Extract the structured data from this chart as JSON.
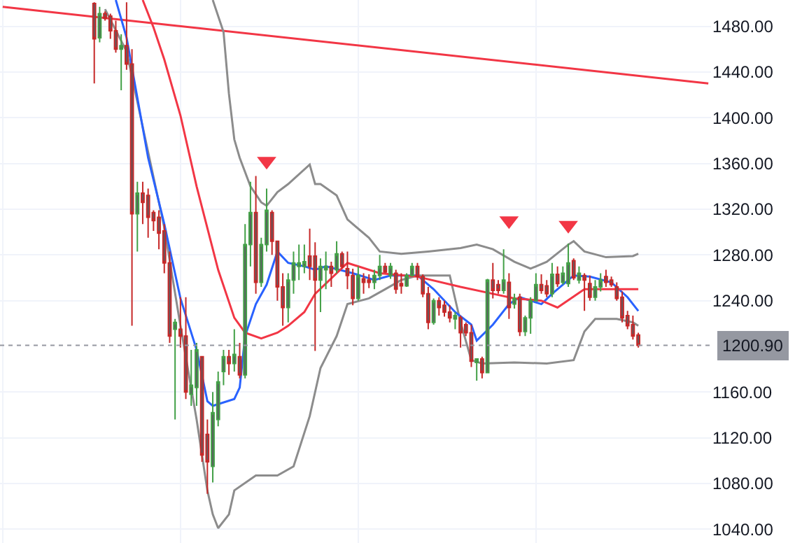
{
  "chart_data": {
    "type": "candlestick",
    "categories": [
      null,
      null,
      null,
      null,
      null,
      null,
      null,
      null,
      null,
      null,
      null,
      null,
      null,
      null,
      null,
      null,
      null,
      null,
      null,
      null,
      null,
      null,
      null,
      null,
      null,
      null,
      null,
      null,
      null,
      null,
      null,
      null,
      null,
      null,
      null,
      null,
      null,
      null,
      null,
      null,
      null,
      null,
      null,
      null,
      null,
      null,
      null,
      null,
      null,
      null,
      null,
      null,
      null,
      null,
      null,
      null,
      null,
      null,
      null,
      null,
      null,
      null,
      null,
      null,
      null,
      null,
      null,
      null,
      null,
      null,
      null,
      null,
      null,
      null,
      null,
      null,
      null,
      null,
      null,
      null,
      null,
      null,
      null,
      null,
      null,
      null,
      null,
      null,
      null,
      null,
      null,
      null,
      null,
      null,
      null,
      null,
      null,
      null,
      null,
      null,
      null,
      null,
      null,
      null,
      null,
      null,
      null,
      null,
      null,
      null,
      null,
      null,
      null,
      null,
      null,
      null,
      null,
      null,
      null,
      null,
      null,
      null,
      null,
      null,
      null,
      null,
      null,
      null,
      null,
      null,
      null,
      null
    ],
    "ohlc": [
      null,
      null,
      null,
      null,
      null,
      null,
      null,
      null,
      null,
      null,
      null,
      null,
      null,
      null,
      null,
      null,
      null,
      [
        1500,
        1501,
        1430,
        1469
      ],
      [
        1470,
        1497,
        1466,
        1491
      ],
      [
        1491,
        1493,
        1485,
        1487
      ],
      [
        1489,
        1491,
        1469,
        1476
      ],
      [
        1476,
        1485,
        1457,
        1460
      ],
      [
        1460,
        1473,
        1424,
        1463
      ],
      [
        1463,
        1501,
        1442,
        1447
      ],
      [
        1447,
        1460,
        1218,
        1316
      ],
      [
        1316,
        1344,
        1283,
        1334
      ],
      [
        1334,
        1344,
        1307,
        1326
      ],
      [
        1332,
        1338,
        1295,
        1313
      ],
      [
        1317,
        1319,
        1301,
        1310
      ],
      [
        1313,
        1319,
        1285,
        1299
      ],
      [
        1301,
        1307,
        1264,
        1273
      ],
      [
        1273,
        1283,
        1203,
        1209
      ],
      [
        1215,
        1224,
        1136,
        1221
      ],
      [
        1215,
        1243,
        1199,
        1209
      ],
      [
        1209,
        1243,
        1154,
        1160
      ],
      [
        1158,
        1197,
        1148,
        1166
      ],
      [
        1164,
        1203,
        1148,
        1197
      ],
      [
        1191,
        1191,
        1099,
        1105
      ],
      [
        1123,
        1136,
        1071,
        1099
      ],
      [
        1095,
        1160,
        1081,
        1142
      ],
      [
        1136,
        1178,
        1130,
        1169
      ],
      [
        1178,
        1197,
        1166,
        1191
      ],
      [
        1191,
        1197,
        1175,
        1185
      ],
      [
        1185,
        1215,
        1178,
        1193
      ],
      [
        1191,
        1203,
        1172,
        1175
      ],
      [
        1175,
        1307,
        1172,
        1289
      ],
      [
        1289,
        1344,
        1270,
        1317
      ],
      [
        1317,
        1349,
        1246,
        1256
      ],
      [
        1256,
        1295,
        1252,
        1289
      ],
      [
        1289,
        1338,
        1283,
        1319
      ],
      [
        1317,
        1319,
        1280,
        1292
      ],
      [
        1292,
        1292,
        1240,
        1252
      ],
      [
        1252,
        1264,
        1218,
        1234
      ],
      [
        1234,
        1264,
        1221,
        1258
      ],
      [
        1258,
        1283,
        1246,
        1273
      ],
      [
        1270,
        1289,
        1258,
        1273
      ],
      [
        1270,
        1289,
        1264,
        1274
      ],
      [
        1279,
        1303,
        1258,
        1270
      ],
      [
        1279,
        1291,
        1196,
        1258
      ],
      [
        1258,
        1277,
        1230,
        1270
      ],
      [
        1267,
        1283,
        1250,
        1270
      ],
      [
        1270,
        1274,
        1252,
        1264
      ],
      [
        1267,
        1292,
        1264,
        1281
      ],
      [
        1281,
        1283,
        1268,
        1270
      ],
      [
        1268,
        1283,
        1250,
        1262
      ],
      [
        1262,
        1268,
        1236,
        1242
      ],
      [
        1242,
        1270,
        1240,
        1262
      ],
      [
        1259,
        1264,
        1246,
        1256
      ],
      [
        1258,
        1263,
        1251,
        1256
      ],
      [
        1256,
        1267,
        1250,
        1262
      ],
      [
        1262,
        1280,
        1258,
        1270
      ],
      [
        1270,
        1273,
        1264,
        1265
      ],
      [
        1262,
        1273,
        1259,
        1270
      ],
      [
        1264,
        1267,
        1246,
        1250
      ],
      [
        1255,
        1264,
        1246,
        1253
      ],
      [
        1253,
        1264,
        1252,
        1262
      ],
      [
        1262,
        1273,
        1261,
        1270
      ],
      [
        1270,
        1273,
        1258,
        1261
      ],
      [
        1261,
        1263,
        1243,
        1246
      ],
      [
        1246,
        1252,
        1215,
        1221
      ],
      [
        1221,
        1242,
        1219,
        1240
      ],
      [
        1240,
        1243,
        1227,
        1234
      ],
      [
        1236,
        1240,
        1226,
        1230
      ],
      [
        1230,
        1236,
        1221,
        1225
      ],
      [
        1224,
        1230,
        1215,
        1227
      ],
      [
        1225,
        1227,
        1199,
        1212
      ],
      [
        1219,
        1221,
        1209,
        1212
      ],
      [
        1212,
        1219,
        1182,
        1187
      ],
      [
        1186,
        1189,
        1170,
        1189
      ],
      [
        1189,
        1191,
        1172,
        1177
      ],
      [
        1177,
        1259,
        1177,
        1258
      ],
      [
        1258,
        1273,
        1242,
        1249
      ],
      [
        1254,
        1258,
        1246,
        1249
      ],
      [
        1249,
        1285,
        1246,
        1258
      ],
      [
        1256,
        1264,
        1224,
        1234
      ],
      [
        1237,
        1246,
        1233,
        1242
      ],
      [
        1243,
        1246,
        1209,
        1213
      ],
      [
        1213,
        1227,
        1209,
        1225
      ],
      [
        1225,
        1243,
        1211,
        1240
      ],
      [
        1240,
        1264,
        1240,
        1254
      ],
      [
        1254,
        1263,
        1246,
        1249
      ],
      [
        1253,
        1258,
        1243,
        1246
      ],
      [
        1246,
        1273,
        1243,
        1263
      ],
      [
        1263,
        1270,
        1252,
        1255
      ],
      [
        1256,
        1270,
        1254,
        1264
      ],
      [
        1255,
        1290,
        1252,
        1273
      ],
      [
        1275,
        1277,
        1258,
        1260
      ],
      [
        1258,
        1270,
        1255,
        1264
      ],
      [
        1262,
        1264,
        1231,
        1258
      ],
      [
        1255,
        1262,
        1240,
        1243
      ],
      [
        1243,
        1258,
        1240,
        1252
      ],
      [
        1252,
        1264,
        1248,
        1258
      ],
      [
        1261,
        1267,
        1252,
        1256
      ],
      [
        1258,
        1261,
        1252,
        1254
      ],
      [
        1252,
        1256,
        1240,
        1242
      ],
      [
        1243,
        1248,
        1221,
        1225
      ],
      [
        1227,
        1231,
        1215,
        1218
      ],
      [
        1219,
        1227,
        1206,
        1209
      ],
      [
        1210,
        1212,
        1199,
        1200.9
      ],
      null,
      null,
      null,
      null,
      null,
      null,
      null,
      null,
      null,
      null,
      null,
      null,
      null
    ],
    "colors": [
      null,
      null,
      null,
      null,
      null,
      null,
      null,
      null,
      null,
      null,
      null,
      null,
      null,
      null,
      null,
      null,
      null,
      "#c62828",
      "#43a047",
      "#c62828",
      "#c62828",
      "#c62828",
      "#43a047",
      "#c62828",
      "#c62828",
      "#43a047",
      "#c62828",
      "#c62828",
      "#c62828",
      "#c62828",
      "#c62828",
      "#c62828",
      "#43a047",
      "#c62828",
      "#c62828",
      "#43a047",
      "#43a047",
      "#c62828",
      "#c62828",
      "#43a047",
      "#43a047",
      "#43a047",
      "#c62828",
      "#43a047",
      "#c62828",
      "#43a047",
      "#43a047",
      "#c62828",
      "#43a047",
      "#43a047",
      "#c62828",
      "#c62828",
      "#c62828",
      "#43a047",
      "#43a047",
      "#43a047",
      "#43a047",
      "#c62828",
      "#c62828",
      "#43a047",
      "#43a047",
      "#c62828",
      "#43a047",
      "#c62828",
      "#c62828",
      "#c62828",
      "#43a047",
      "#c62828",
      "#c62828",
      "#43a047",
      "#43a047",
      "#c62828",
      "#43a047",
      "#c62828",
      "#c62828",
      "#43a047",
      "#43a047",
      "#c62828",
      "#c62828",
      "#c62828",
      "#43a047",
      "#c62828",
      "#c62828",
      "#c62828",
      "#43a047",
      "#c62828",
      "#c62828",
      "#c62828",
      "#43a047",
      "#c62828",
      "#43a047",
      "#c62828",
      "#c62828",
      "#43a047",
      "#c62828",
      "#43a047",
      "#c62828",
      "#43a047",
      "#43a047",
      "#43a047",
      "#c62828",
      "#c62828",
      "#43a047",
      "#c62828",
      "#43a047",
      "#43a047",
      "#c62828",
      "#43a047",
      "#c62828",
      "#c62828",
      "#43a047",
      "#43a047",
      "#c62828",
      "#c62828",
      "#c62828",
      "#c62828",
      "#c62828",
      "#c62828",
      "#c62828",
      null,
      null,
      null,
      null,
      null,
      null,
      null,
      null,
      null,
      null,
      null,
      null,
      null
    ],
    "color": "#5d5d63",
    "series": [
      {
        "type": "line",
        "color": "#f23645",
        "values": [
          1497,
          null,
          null,
          null,
          null,
          null,
          null,
          null,
          null,
          null,
          null,
          null,
          null,
          null,
          null,
          null,
          null,
          null,
          null,
          null,
          null,
          null,
          null,
          null,
          null,
          null,
          null,
          null,
          null,
          null,
          null,
          null,
          null,
          null,
          null,
          null,
          null,
          null,
          null,
          null,
          null,
          null,
          null,
          null,
          null,
          null,
          null,
          null,
          null,
          null,
          null,
          null,
          null,
          null,
          null,
          null,
          null,
          null,
          null,
          null,
          null,
          null,
          null,
          null,
          null,
          null,
          null,
          null,
          null,
          null,
          null,
          null,
          null,
          null,
          null,
          null,
          null,
          null,
          null,
          null,
          null,
          null,
          null,
          null,
          null,
          null,
          null,
          null,
          null,
          null,
          null,
          null,
          null,
          null,
          null,
          null,
          null,
          null,
          null,
          null,
          null,
          null,
          null,
          null,
          null,
          null,
          null,
          null,
          null,
          null,
          null,
          null,
          null,
          null,
          null,
          null,
          null,
          null,
          null,
          null,
          null,
          null,
          null,
          null,
          null,
          null,
          null,
          null,
          null,
          null,
          null,
          1430
        ]
      },
      {
        "type": "line",
        "color": "#8c8c8c",
        "values": [
          null,
          null,
          null,
          null,
          null,
          null,
          null,
          null,
          null,
          null,
          null,
          null,
          null,
          null,
          null,
          null,
          null,
          null,
          null,
          null,
          null,
          null,
          null,
          null,
          null,
          null,
          null,
          null,
          null,
          null,
          null,
          null,
          null,
          null,
          null,
          null,
          null,
          null,
          null,
          1503,
          null,
          1475,
          1421,
          1381,
          1365,
          null,
          1340,
          null,
          1326,
          1323,
          null,
          1335,
          null,
          1342,
          null,
          null,
          null,
          1359,
          1342,
          1342,
          null,
          null,
          1332,
          null,
          1311,
          null,
          null,
          null,
          1295,
          null,
          1283,
          null,
          null,
          null,
          1281,
          null,
          null,
          null,
          null,
          1283,
          null,
          null,
          null,
          null,
          null,
          1286,
          null,
          null,
          1289,
          null,
          null,
          1285,
          null,
          null,
          null,
          1274,
          null,
          null,
          1268,
          null,
          null,
          1274,
          null,
          null,
          null,
          1289,
          1292,
          null,
          1283,
          null,
          null,
          null,
          1278,
          null,
          null,
          null,
          null,
          1279,
          1281,
          null,
          null,
          null,
          null,
          null,
          null,
          null,
          null,
          null,
          null,
          null,
          null,
          null
        ]
      },
      {
        "type": "line",
        "color": "#8c8c8c",
        "values": [
          null,
          null,
          null,
          null,
          null,
          null,
          null,
          null,
          null,
          null,
          null,
          null,
          null,
          null,
          null,
          null,
          null,
          null,
          null,
          1495,
          null,
          null,
          null,
          1458,
          null,
          null,
          null,
          null,
          null,
          null,
          1304,
          null,
          null,
          1218,
          null,
          null,
          1136,
          null,
          1074,
          1053,
          1041,
          null,
          1053,
          1074,
          null,
          null,
          null,
          1087,
          null,
          null,
          null,
          1087,
          null,
          null,
          1095,
          null,
          null,
          1139,
          null,
          1181,
          null,
          null,
          1209,
          null,
          1237,
          null,
          null,
          null,
          1242,
          null,
          null,
          1250,
          null,
          null,
          1258,
          null,
          null,
          1262,
          null,
          null,
          null,
          null,
          null,
          1262,
          null,
          1221,
          null,
          1188,
          null,
          1185,
          null,
          null,
          null,
          null,
          null,
          1186,
          null,
          null,
          null,
          null,
          null,
          1185,
          null,
          null,
          null,
          null,
          1188,
          null,
          1213,
          null,
          1224,
          null,
          null,
          null,
          1224,
          null,
          null,
          1221,
          1218,
          null,
          null,
          null,
          null,
          null,
          null,
          null,
          null,
          null,
          null,
          null,
          null,
          null
        ]
      },
      {
        "type": "line",
        "color": "#2962ff",
        "values": [
          null,
          null,
          null,
          null,
          null,
          null,
          null,
          null,
          null,
          null,
          null,
          null,
          null,
          null,
          null,
          null,
          null,
          null,
          null,
          null,
          null,
          1503,
          null,
          1470,
          null,
          null,
          null,
          1365,
          null,
          null,
          1307,
          null,
          null,
          1242,
          null,
          null,
          1197,
          null,
          1152,
          1148,
          null,
          null,
          null,
          1154,
          1164,
          1209,
          null,
          1237,
          null,
          1254,
          null,
          1283,
          null,
          1273,
          null,
          null,
          1270,
          null,
          1267,
          null,
          1270,
          null,
          null,
          null,
          null,
          1264,
          null,
          null,
          null,
          1258,
          null,
          null,
          1262,
          null,
          null,
          null,
          null,
          1262,
          null,
          null,
          1250,
          null,
          null,
          null,
          1230,
          null,
          null,
          1219,
          1205,
          null,
          null,
          1219,
          null,
          null,
          1237,
          null,
          1243,
          null,
          null,
          null,
          1237,
          null,
          1246,
          null,
          null,
          null,
          1262,
          null,
          null,
          1261,
          null,
          null,
          null,
          1256,
          null,
          null,
          1243,
          null,
          1231,
          null,
          null,
          null,
          null,
          null,
          null,
          null,
          null,
          null,
          null,
          null,
          null,
          null
        ]
      },
      {
        "type": "line",
        "color": "#f23645",
        "values": [
          null,
          null,
          null,
          null,
          null,
          null,
          null,
          null,
          null,
          null,
          null,
          null,
          null,
          null,
          null,
          null,
          null,
          null,
          null,
          null,
          null,
          null,
          null,
          null,
          null,
          null,
          1503,
          null,
          1479,
          null,
          1451,
          null,
          null,
          1402,
          null,
          null,
          1340,
          null,
          null,
          null,
          1267,
          null,
          null,
          1225,
          null,
          1212,
          null,
          null,
          1207,
          null,
          null,
          1212,
          null,
          1218,
          null,
          null,
          1230,
          null,
          1246,
          null,
          null,
          null,
          null,
          null,
          1273,
          null,
          null,
          null,
          null,
          null,
          1264,
          null,
          null,
          null,
          null,
          null,
          null,
          1261,
          null,
          null,
          null,
          null,
          null,
          null,
          null,
          1252,
          null,
          null,
          null,
          null,
          null,
          1246,
          null,
          null,
          null,
          1242,
          null,
          null,
          null,
          null,
          1240,
          null,
          null,
          1234,
          null,
          null,
          null,
          null,
          1250,
          null,
          null,
          null,
          null,
          null,
          null,
          null,
          null,
          null,
          1250,
          null,
          null,
          null,
          null,
          null,
          null,
          null,
          null,
          null,
          null,
          null,
          null,
          null
        ]
      },
      {
        "type": "scatter",
        "marker": "triangle",
        "color": "#f23645",
        "values": [
          null,
          null,
          null,
          null,
          null,
          null,
          null,
          null,
          null,
          null,
          null,
          null,
          null,
          null,
          null,
          null,
          null,
          null,
          null,
          null,
          null,
          null,
          null,
          null,
          null,
          null,
          null,
          null,
          null,
          null,
          null,
          null,
          null,
          null,
          null,
          null,
          null,
          null,
          null,
          null,
          null,
          null,
          null,
          null,
          null,
          null,
          null,
          null,
          null,
          1362,
          null,
          null,
          null,
          null,
          null,
          null,
          null,
          null,
          null,
          null,
          null,
          null,
          null,
          null,
          null,
          null,
          null,
          null,
          null,
          null,
          null,
          null,
          null,
          null,
          null,
          null,
          null,
          null,
          null,
          null,
          null,
          null,
          null,
          null,
          null,
          null,
          null,
          null,
          null,
          null,
          null,
          null,
          null,
          null,
          1310,
          null,
          null,
          null,
          null,
          null,
          null,
          null,
          null,
          null,
          null,
          1306,
          null,
          null,
          null,
          null,
          null,
          null,
          null,
          null,
          null,
          null,
          null,
          null,
          null,
          null,
          null,
          null,
          null,
          null,
          null,
          null,
          null,
          null,
          null,
          null,
          null,
          null
        ]
      }
    ],
    "ylim": [
      1028,
      1503
    ],
    "yticks": [
      {
        "value": 1040,
        "label": "1040.00"
      },
      {
        "value": 1080,
        "label": "1080.00"
      },
      {
        "value": 1120,
        "label": "1120.00"
      },
      {
        "value": 1160,
        "label": "1160.00"
      },
      {
        "value": 1240,
        "label": "1240.00"
      },
      {
        "value": 1280,
        "label": "1280.00"
      },
      {
        "value": 1320,
        "label": "1320.00"
      },
      {
        "value": 1360,
        "label": "1360.00"
      },
      {
        "value": 1400,
        "label": "1400.00"
      },
      {
        "value": 1440,
        "label": "1440.00"
      },
      {
        "value": 1480,
        "label": "1480.00"
      }
    ],
    "ref_lines": [
      {
        "axis": "y",
        "value": 1200.9,
        "label": "1200.90",
        "color": "#9598a1",
        "line_style": "dotted"
      }
    ],
    "grid": true,
    "tick_labels": "y"
  }
}
